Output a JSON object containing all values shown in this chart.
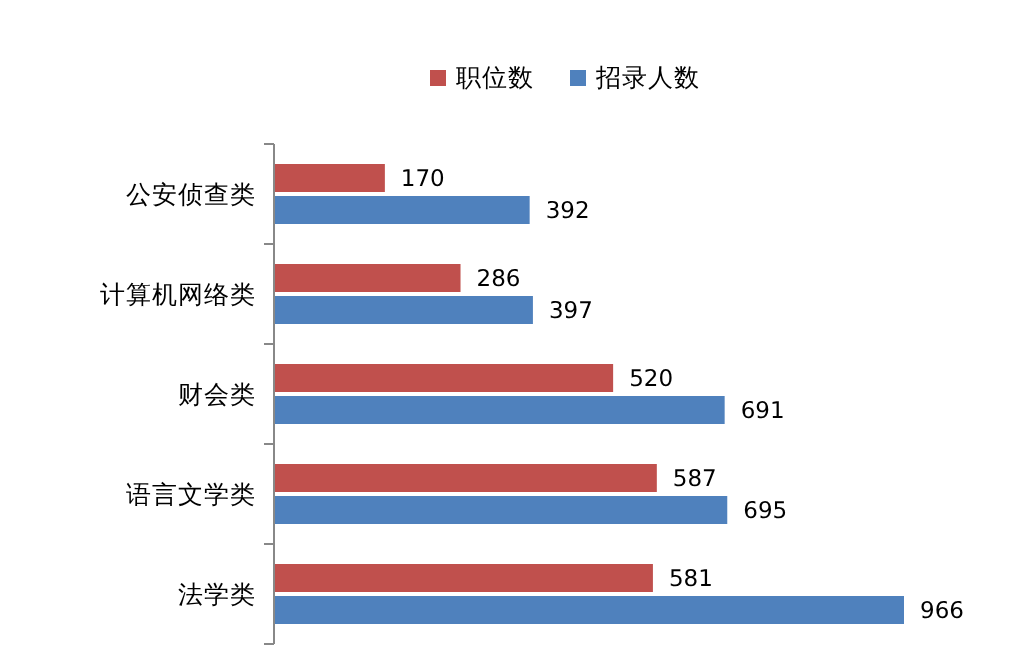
{
  "chart_data": {
    "type": "bar",
    "orientation": "horizontal",
    "categories": [
      "公安侦查类",
      "计算机网络类",
      "财会类",
      "语言文学类",
      "法学类"
    ],
    "series": [
      {
        "name": "职位数",
        "color": "#c0504d",
        "values": [
          170,
          286,
          520,
          587,
          581
        ]
      },
      {
        "name": "招录人数",
        "color": "#4f81bd",
        "values": [
          392,
          397,
          691,
          695,
          966
        ]
      }
    ],
    "data_labels": true,
    "legend": "top"
  }
}
